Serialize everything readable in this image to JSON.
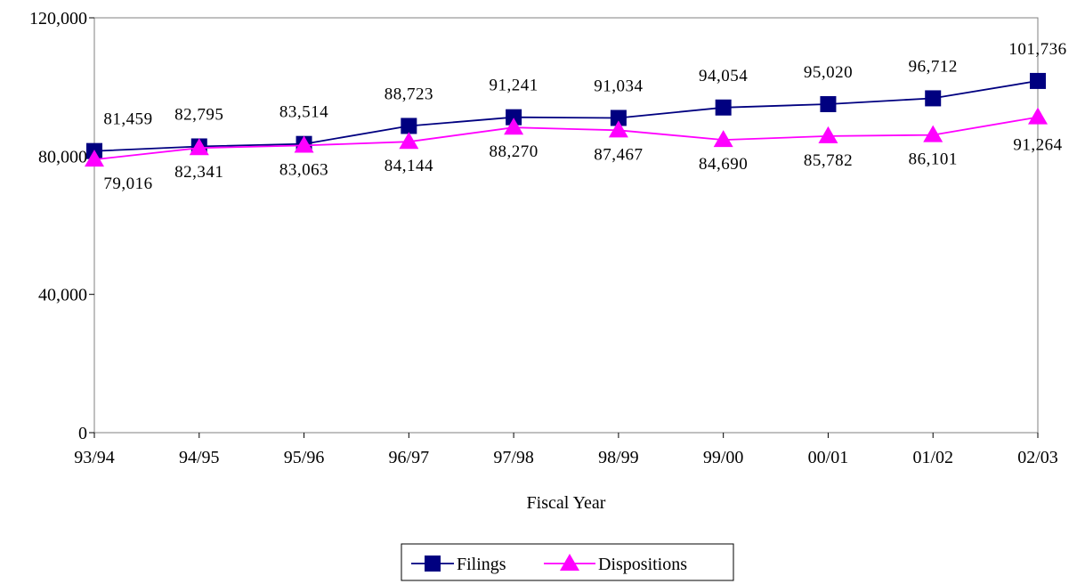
{
  "chart_data": {
    "type": "line",
    "title": "",
    "xlabel": "Fiscal Year",
    "ylabel": "",
    "ylim": [
      0,
      120000
    ],
    "y_ticks": [
      0,
      40000,
      80000,
      120000
    ],
    "y_tick_labels": [
      "0",
      "40,000",
      "80,000",
      "120,000"
    ],
    "categories": [
      "93/94",
      "94/95",
      "95/96",
      "96/97",
      "97/98",
      "98/99",
      "99/00",
      "00/01",
      "01/02",
      "02/03"
    ],
    "grid": false,
    "legend_position": "bottom-center",
    "series": [
      {
        "name": "Filings",
        "color": "#000080",
        "marker": "square",
        "values": [
          81459,
          82795,
          83514,
          88723,
          91241,
          91034,
          94054,
          95020,
          96712,
          101736
        ],
        "labels": [
          "81,459",
          "82,795",
          "83,514",
          "88,723",
          "91,241",
          "91,034",
          "94,054",
          "95,020",
          "96,712",
          "101,736"
        ]
      },
      {
        "name": "Dispositions",
        "color": "#ff00ff",
        "marker": "triangle",
        "values": [
          79016,
          82341,
          83063,
          84144,
          88270,
          87467,
          84690,
          85782,
          86101,
          91264
        ],
        "labels": [
          "79,016",
          "82,341",
          "83,063",
          "84,144",
          "88,270",
          "87,467",
          "84,690",
          "85,782",
          "86,101",
          "91,264"
        ]
      }
    ]
  }
}
